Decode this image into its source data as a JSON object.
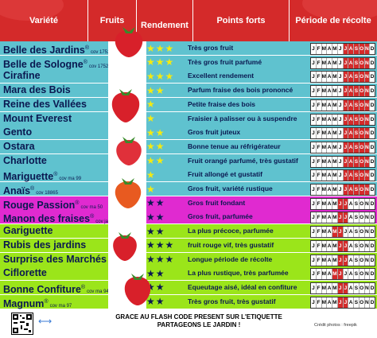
{
  "header": {
    "col_variete": "Variété",
    "col_fruits": "Fruits",
    "col_rendement": "Rendement",
    "col_points_forts": "Points forts",
    "col_periode": "Période de récolte"
  },
  "colors": {
    "blue": "#5fc2cf",
    "magenta": "#e02ad0",
    "green": "#9be51a",
    "red": "#d42a2a"
  },
  "months": [
    "J",
    "F",
    "M",
    "A",
    "M",
    "J",
    "J",
    "A",
    "S",
    "O",
    "N",
    "D"
  ],
  "rows": [
    {
      "name": "Belle des Jardins",
      "reg": "®",
      "cov": "cov 17528",
      "stars": "★★★",
      "pf": "Très gros fruit",
      "band": "blue",
      "harvest": [
        6,
        7,
        8,
        9,
        10
      ]
    },
    {
      "name": "Belle de Sologne",
      "reg": "®",
      "cov": "cov 17528",
      "stars": "★★★",
      "pf": "Très gros fruit parfumé",
      "band": "blue",
      "harvest": [
        6,
        7,
        8,
        9,
        10
      ]
    },
    {
      "name": "Cirafine",
      "reg": "",
      "cov": "",
      "stars": "★★★",
      "pf": "Excellent rendement",
      "band": "blue",
      "harvest": [
        6,
        7,
        8,
        9,
        10
      ]
    },
    {
      "name": "Mara des Bois",
      "reg": "",
      "cov": "",
      "stars": "★★",
      "pf": "Parfum fraise des bois prononcé",
      "band": "blue",
      "harvest": [
        6,
        7,
        8,
        9,
        10
      ]
    },
    {
      "name": "Reine des Vallées",
      "reg": "",
      "cov": "",
      "stars": "★",
      "pf": "Petite fraise des bois",
      "band": "blue",
      "harvest": [
        6,
        7,
        8,
        9,
        10
      ]
    },
    {
      "name": "Mount Everest",
      "reg": "",
      "cov": "",
      "stars": "★",
      "pf": "Fraisier à palisser ou à suspendre",
      "band": "blue",
      "harvest": [
        6,
        7,
        8,
        9,
        10
      ]
    },
    {
      "name": "Gento",
      "reg": "",
      "cov": "",
      "stars": "★★",
      "pf": "Gros fruit juteux",
      "band": "blue",
      "harvest": [
        6,
        7,
        8,
        9,
        10
      ]
    },
    {
      "name": "Ostara",
      "reg": "",
      "cov": "",
      "stars": "★★",
      "pf": "Bonne tenue au réfrigérateur",
      "band": "blue",
      "harvest": [
        6,
        7,
        8,
        9,
        10
      ]
    },
    {
      "name": "Charlotte",
      "reg": "",
      "cov": "",
      "stars": "★★",
      "pf": "Fruit orangé parfumé, très gustatif",
      "band": "blue",
      "harvest": [
        6,
        7,
        8,
        9,
        10
      ]
    },
    {
      "name": "Mariguette",
      "reg": "®",
      "cov": "cov ma 99",
      "stars": "★",
      "pf": "Fruit allongé et gustatif",
      "band": "blue",
      "harvest": [
        6,
        7,
        8,
        9,
        10
      ]
    },
    {
      "name": "Anaïs",
      "reg": "®",
      "cov": "cov 18865",
      "stars": "★",
      "pf": "Gros fruit, variété rustique",
      "band": "blue",
      "harvest": [
        6,
        7,
        8,
        9,
        10
      ]
    },
    {
      "name": "Rouge Passion",
      "reg": "®",
      "cov": "cov ma 50",
      "stars": "★★",
      "pf": "Gros fruit fondant",
      "band": "magenta",
      "harvest": [
        5,
        6
      ]
    },
    {
      "name": "Manon des fraises",
      "reg": "®",
      "cov": "cov jardin",
      "stars": "★★",
      "pf": "Gros fruit, parfumée",
      "band": "magenta",
      "harvest": [
        5,
        6
      ]
    },
    {
      "name": "Gariguette",
      "reg": "",
      "cov": "",
      "stars": "★★",
      "pf": "La plus précoce, parfumée",
      "band": "green",
      "harvest": [
        4,
        5
      ]
    },
    {
      "name": "Rubis des jardins",
      "reg": "",
      "cov": "",
      "stars": "★★★",
      "pf": "fruit rouge vif, très gustatif",
      "band": "green",
      "harvest": [
        5,
        6
      ]
    },
    {
      "name": "Surprise des Marchés",
      "reg": "",
      "cov": "",
      "stars": "★★★",
      "pf": "Longue période de récolte",
      "band": "green",
      "harvest": [
        5,
        6
      ]
    },
    {
      "name": "Ciflorette",
      "reg": "",
      "cov": "",
      "stars": "★★",
      "pf": "La plus rustique, très parfumée",
      "band": "green",
      "harvest": [
        4,
        5
      ]
    },
    {
      "name": "Bonne Confiture",
      "reg": "®",
      "cov": "cov ma 94731",
      "stars": "★★",
      "pf": "Equeutage aisé, idéal en confiture",
      "band": "green",
      "harvest": [
        5,
        6
      ]
    },
    {
      "name": "Magnum",
      "reg": "®",
      "cov": "cov ma 97",
      "stars": "★★",
      "pf": "Très gros fruit, très gustatif",
      "band": "green",
      "harvest": [
        5,
        6
      ]
    }
  ],
  "footer": {
    "line1": "GRACE AU FLASH CODE PRESENT SUR L'ETIQUETTE",
    "line2": "PARTAGEONS LE JARDIN !",
    "credit": "Crédit photos : freepik"
  }
}
